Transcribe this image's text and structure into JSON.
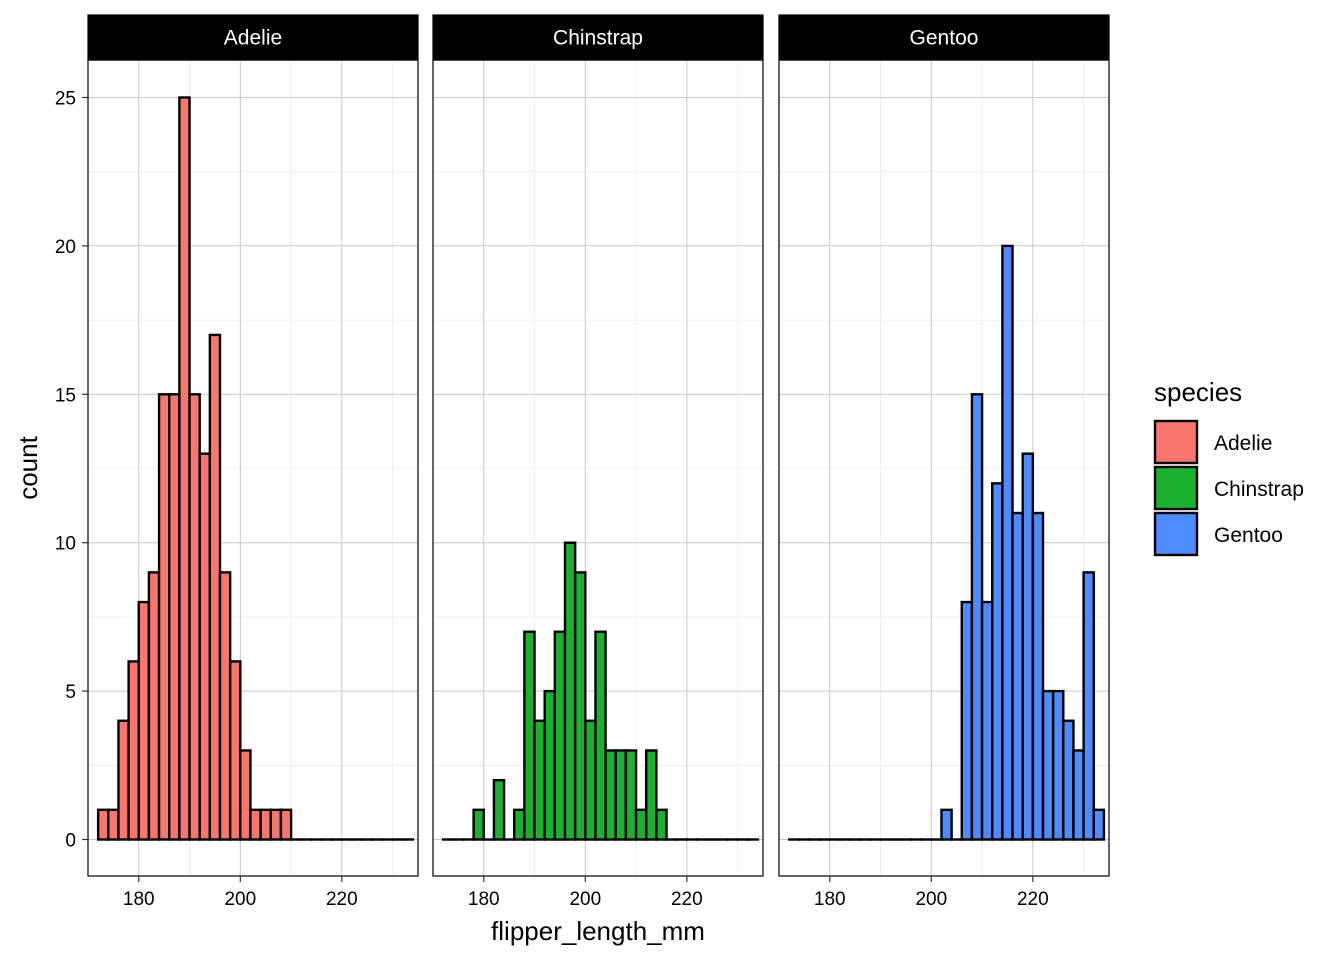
{
  "chart_data": {
    "type": "bar",
    "subtype": "faceted-histogram",
    "facet_by": "species",
    "xlabel": "flipper_length_mm",
    "ylabel": "count",
    "xlim": [
      170,
      235
    ],
    "ylim": [
      0,
      26
    ],
    "x_ticks": [
      "180",
      "200",
      "220"
    ],
    "y_ticks": [
      "0",
      "5",
      "10",
      "15",
      "20",
      "25"
    ],
    "bin_start": 172,
    "bin_width": 2,
    "grid": true,
    "legend": {
      "title": "species",
      "placement": "right",
      "entries": [
        "Adelie",
        "Chinstrap",
        "Gentoo"
      ]
    },
    "colors": {
      "Adelie": "#F8766D",
      "Chinstrap": "#1BB02E",
      "Gentoo": "#4E8BFF",
      "strip": "#000000",
      "outline": "#000000"
    },
    "series": [
      {
        "name": "Adelie",
        "values": [
          1,
          1,
          4,
          6,
          8,
          9,
          15,
          15,
          25,
          15,
          13,
          17,
          9,
          6,
          3,
          1,
          1,
          1,
          1,
          0,
          0,
          0,
          0,
          0,
          0,
          0,
          0,
          0,
          0,
          0,
          0
        ]
      },
      {
        "name": "Chinstrap",
        "values": [
          0,
          0,
          0,
          1,
          0,
          2,
          0,
          1,
          7,
          4,
          5,
          7,
          10,
          9,
          4,
          7,
          3,
          3,
          3,
          1,
          3,
          1,
          0,
          0,
          0,
          0,
          0,
          0,
          0,
          0,
          0
        ]
      },
      {
        "name": "Gentoo",
        "values": [
          0,
          0,
          0,
          0,
          0,
          0,
          0,
          0,
          0,
          0,
          0,
          0,
          0,
          0,
          0,
          1,
          0,
          8,
          15,
          8,
          12,
          20,
          11,
          13,
          11,
          5,
          5,
          4,
          3,
          9,
          1
        ]
      }
    ]
  }
}
